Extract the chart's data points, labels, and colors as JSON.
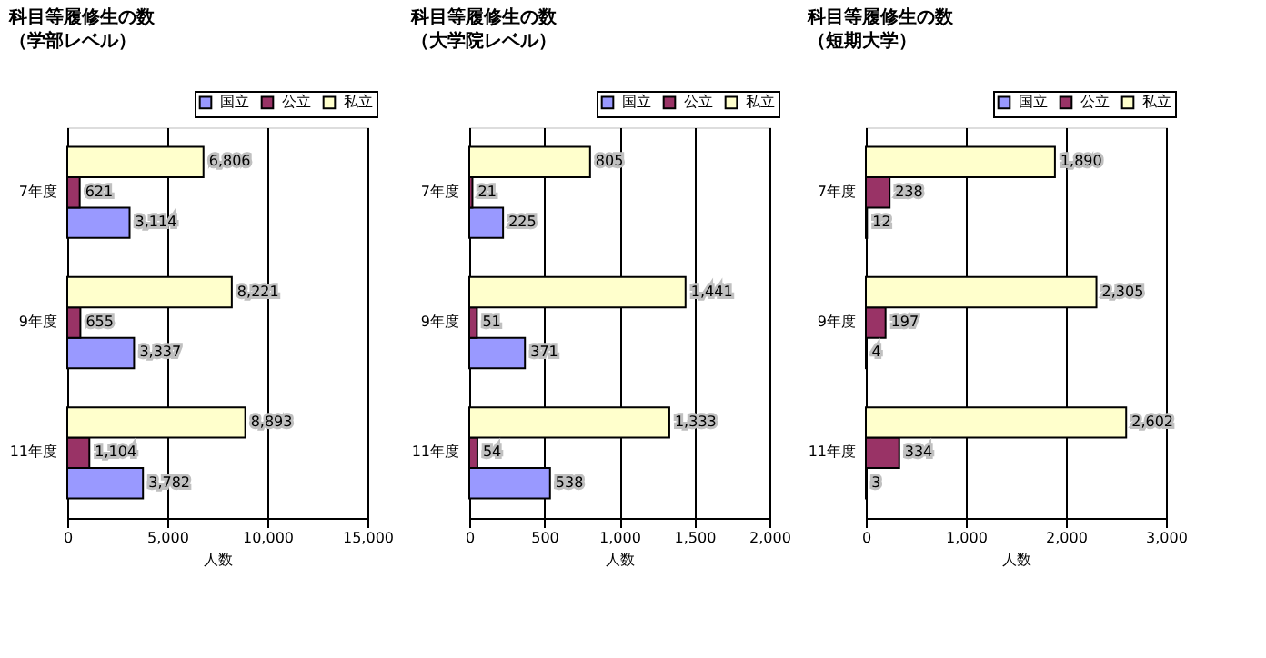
{
  "chart_data": [
    {
      "type": "bar",
      "orientation": "horizontal",
      "title": "科目等履修生の数",
      "subtitle": "（学部レベル）",
      "xlabel": "人数",
      "categories": [
        "7年度",
        "9年度",
        "11年度"
      ],
      "series": [
        {
          "name": "国立",
          "color": "#9999ff",
          "values": [
            3114,
            3337,
            3782
          ],
          "value_labels": [
            "3,114",
            "3,337",
            "3,782"
          ]
        },
        {
          "name": "公立",
          "color": "#993366",
          "values": [
            621,
            655,
            1104
          ],
          "value_labels": [
            "621",
            "655",
            "1,104"
          ]
        },
        {
          "name": "私立",
          "color": "#ffffcc",
          "values": [
            6806,
            8221,
            8893
          ],
          "value_labels": [
            "6,806",
            "8,221",
            "8,893"
          ]
        }
      ],
      "xlim": [
        0,
        15000
      ],
      "xticks": [
        {
          "value": 0,
          "label": "0"
        },
        {
          "value": 5000,
          "label": "5,000"
        },
        {
          "value": 10000,
          "label": "10,000"
        },
        {
          "value": 15000,
          "label": "15,000"
        }
      ],
      "grid": "x",
      "legend": "top right"
    },
    {
      "type": "bar",
      "orientation": "horizontal",
      "title": "科目等履修生の数",
      "subtitle": "（大学院レベル）",
      "xlabel": "人数",
      "categories": [
        "7年度",
        "9年度",
        "11年度"
      ],
      "series": [
        {
          "name": "国立",
          "color": "#9999ff",
          "values": [
            225,
            371,
            538
          ],
          "value_labels": [
            "225",
            "371",
            "538"
          ]
        },
        {
          "name": "公立",
          "color": "#993366",
          "values": [
            21,
            51,
            54
          ],
          "value_labels": [
            "21",
            "51",
            "54"
          ]
        },
        {
          "name": "私立",
          "color": "#ffffcc",
          "values": [
            805,
            1441,
            1333
          ],
          "value_labels": [
            "805",
            "1,441",
            "1,333"
          ]
        }
      ],
      "xlim": [
        0,
        2000
      ],
      "xticks": [
        {
          "value": 0,
          "label": "0"
        },
        {
          "value": 500,
          "label": "500"
        },
        {
          "value": 1000,
          "label": "1,000"
        },
        {
          "value": 1500,
          "label": "1,500"
        },
        {
          "value": 2000,
          "label": "2,000"
        }
      ],
      "grid": "x",
      "legend": "top right"
    },
    {
      "type": "bar",
      "orientation": "horizontal",
      "title": "科目等履修生の数",
      "subtitle": "（短期大学）",
      "xlabel": "人数",
      "categories": [
        "7年度",
        "9年度",
        "11年度"
      ],
      "series": [
        {
          "name": "国立",
          "color": "#9999ff",
          "values": [
            12,
            4,
            3
          ],
          "value_labels": [
            "12",
            "4",
            "3"
          ]
        },
        {
          "name": "公立",
          "color": "#993366",
          "values": [
            238,
            197,
            334
          ],
          "value_labels": [
            "238",
            "197",
            "334"
          ]
        },
        {
          "name": "私立",
          "color": "#ffffcc",
          "values": [
            1890,
            2305,
            2602
          ],
          "value_labels": [
            "1,890",
            "2,305",
            "2,602"
          ]
        }
      ],
      "xlim": [
        0,
        3000
      ],
      "xticks": [
        {
          "value": 0,
          "label": "0"
        },
        {
          "value": 1000,
          "label": "1,000"
        },
        {
          "value": 2000,
          "label": "2,000"
        },
        {
          "value": 3000,
          "label": "3,000"
        }
      ],
      "grid": "x",
      "legend": "top right"
    }
  ]
}
